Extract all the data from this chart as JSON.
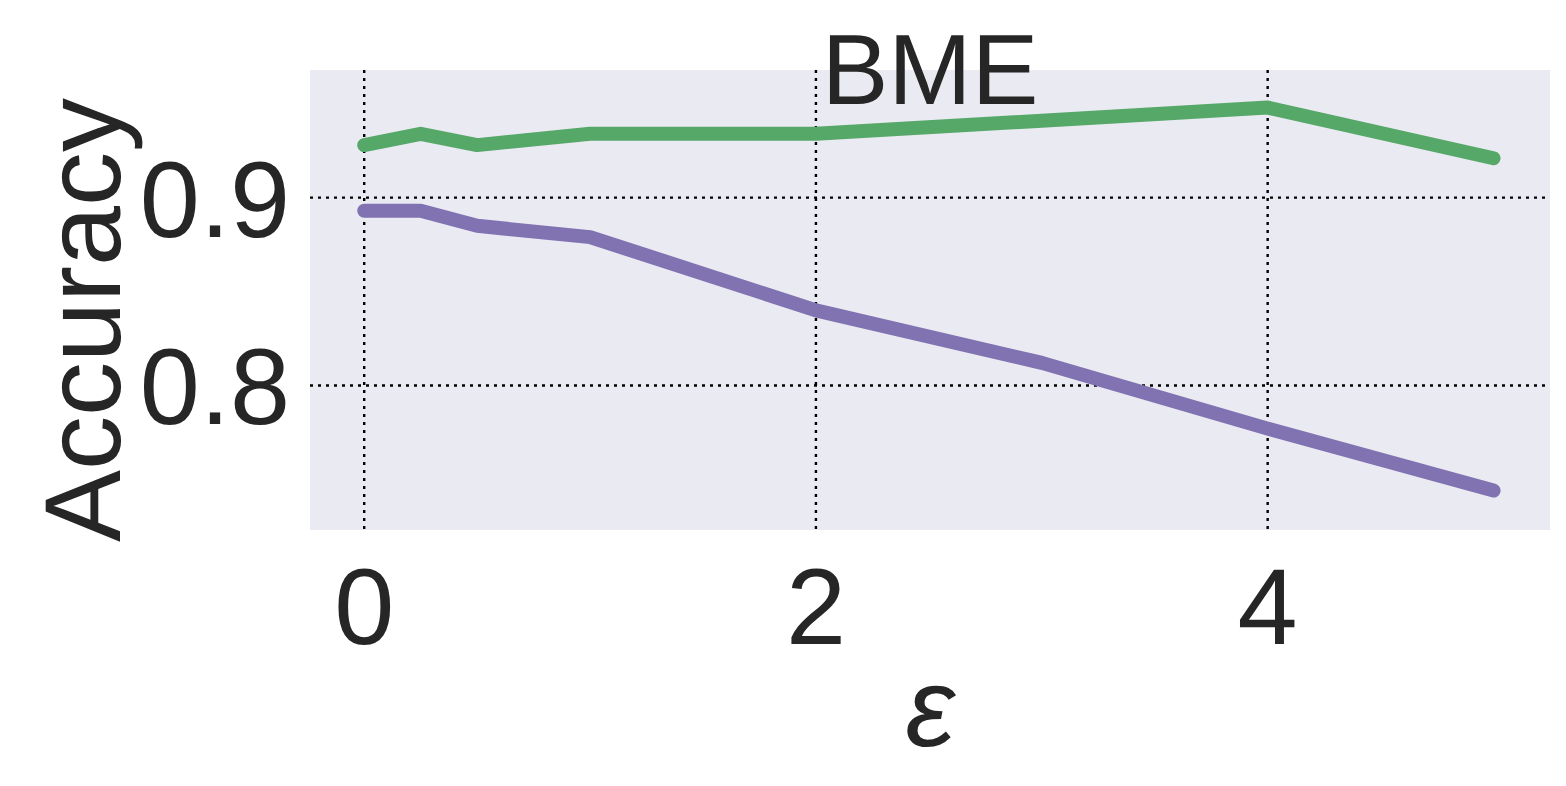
{
  "chart_data": {
    "type": "line",
    "title": "BME",
    "xlabel": "ε",
    "ylabel": "Accuracy",
    "x": [
      0,
      0.25,
      0.5,
      1,
      2,
      3,
      4,
      5
    ],
    "series": [
      {
        "color": "#55a868",
        "values": [
          0.928,
          0.934,
          0.928,
          0.934,
          0.934,
          0.941,
          0.948,
          0.921
        ]
      },
      {
        "color": "#8172b2",
        "values": [
          0.893,
          0.893,
          0.885,
          0.879,
          0.84,
          0.812,
          0.777,
          0.744
        ]
      }
    ],
    "xlim": [
      -0.24,
      5.25
    ],
    "ylim": [
      0.723,
      0.968
    ],
    "xticks": [
      0,
      2,
      4
    ],
    "yticks": [
      0.8,
      0.9
    ],
    "grid": true,
    "marker": "none",
    "line_style": "solid"
  }
}
